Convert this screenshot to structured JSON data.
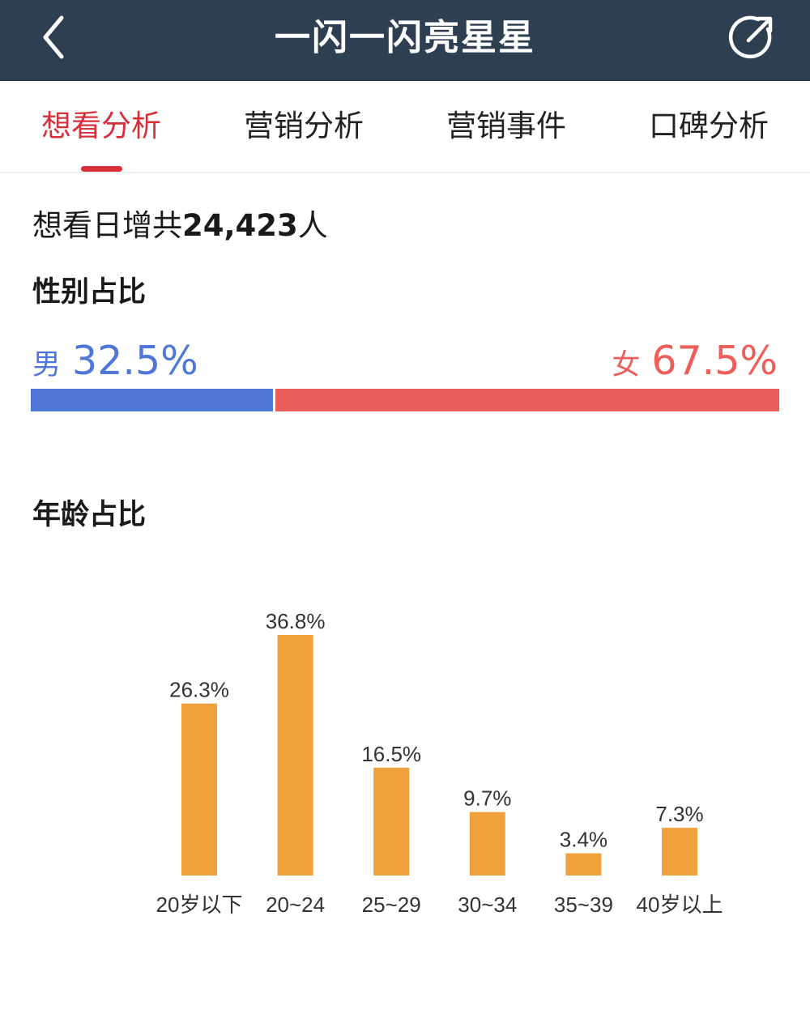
{
  "header": {
    "title": "一闪一闪亮星星",
    "back_icon": "chevron-left-icon",
    "share_icon": "share-icon",
    "background_color": "#2e3f52"
  },
  "tabs": [
    {
      "label": "想看分析",
      "active": true
    },
    {
      "label": "营销分析",
      "active": false
    },
    {
      "label": "营销事件",
      "active": false
    },
    {
      "label": "口碑分析",
      "active": false
    }
  ],
  "accent_color": "#d8303a",
  "summary": {
    "prefix": "想看日增共",
    "count": "24,423",
    "suffix": "人"
  },
  "gender": {
    "title": "性别占比",
    "male": {
      "label": "男",
      "percent_text": "32.5%",
      "percent": 32.5,
      "color": "#4f77d8"
    },
    "female": {
      "label": "女",
      "percent_text": "67.5%",
      "percent": 67.5,
      "color": "#ec5e5a"
    }
  },
  "age": {
    "title": "年龄占比"
  },
  "chart_data": {
    "type": "bar",
    "categories": [
      "20岁以下",
      "20~24",
      "25~29",
      "30~34",
      "35~39",
      "40岁以上"
    ],
    "values": [
      26.3,
      36.8,
      16.5,
      9.7,
      3.4,
      7.3
    ],
    "value_labels": [
      "26.3%",
      "36.8%",
      "16.5%",
      "9.7%",
      "3.4%",
      "7.3%"
    ],
    "title": "年龄占比",
    "xlabel": "",
    "ylabel": "",
    "ylim": [
      0,
      36.8
    ],
    "grid": false,
    "bar_color": "#f0a13b"
  }
}
